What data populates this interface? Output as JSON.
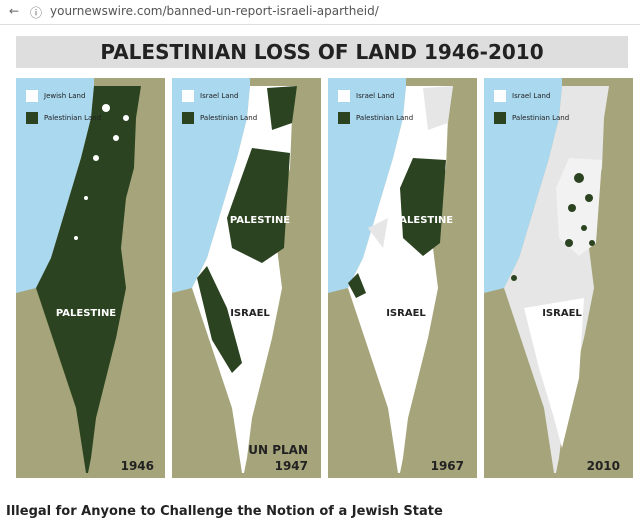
{
  "browser": {
    "url": "yournewswire.com/banned-un-report-israeli-apartheid/"
  },
  "image": {
    "title": "PALESTINIAN LOSS OF LAND 1946-2010",
    "panels": [
      {
        "legend": [
          "Jewish Land",
          "Palestinian Land"
        ],
        "labels": [
          "PALESTINE"
        ],
        "year": "1946"
      },
      {
        "legend": [
          "Israel Land",
          "Palestinian Land"
        ],
        "labels": [
          "PALESTINE",
          "ISRAEL"
        ],
        "note": "UN PLAN",
        "year": "1947"
      },
      {
        "legend": [
          "Israel Land",
          "Palestinian Land"
        ],
        "labels": [
          "PALESTINE",
          "ISRAEL"
        ],
        "year": "1967"
      },
      {
        "legend": [
          "Israel Land",
          "Palestinian Land"
        ],
        "labels": [
          "ISRAEL"
        ],
        "year": "2010"
      }
    ]
  },
  "caption": "Illegal for Anyone to Challenge the Notion of a Jewish State"
}
